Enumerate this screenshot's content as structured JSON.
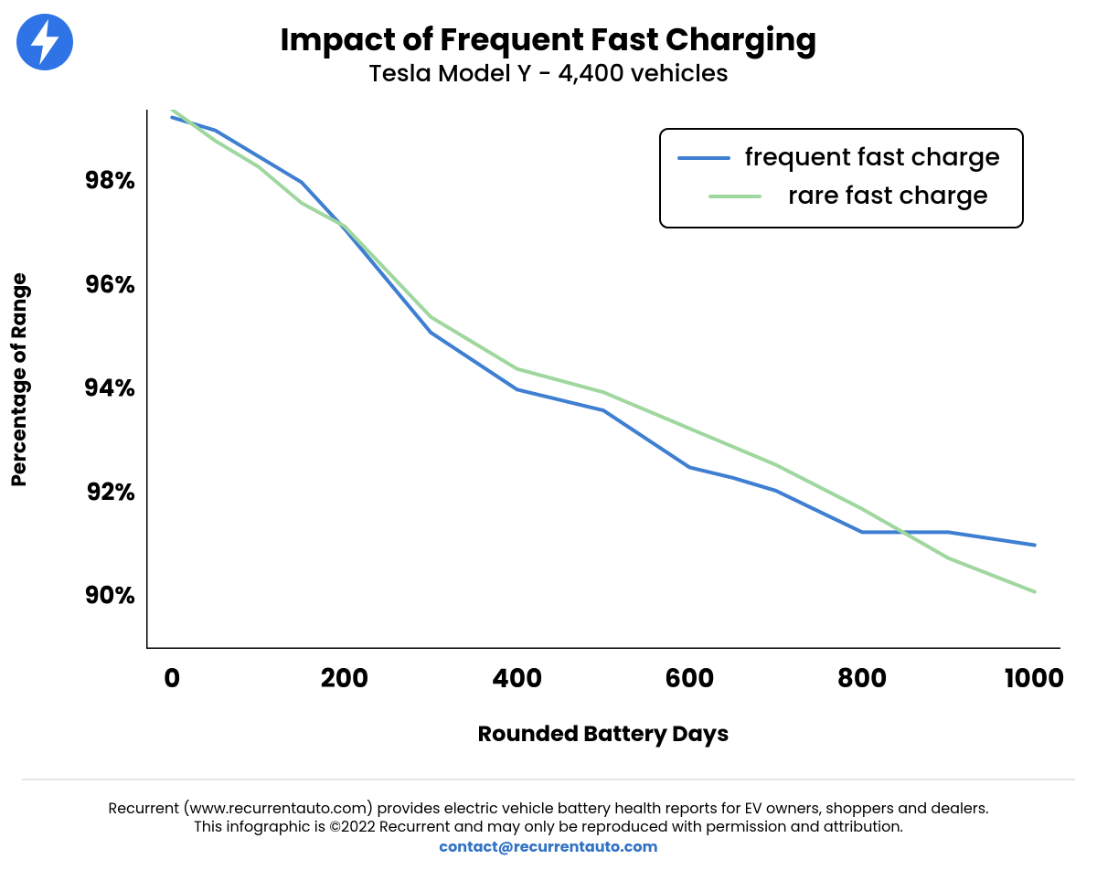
{
  "logo": {
    "bg_color": "#2f74e6",
    "bolt_color": "#ffffff"
  },
  "header": {
    "title": "Impact of Frequent Fast Charging",
    "subtitle": "Tesla Model Y - 4,400 vehicles",
    "title_fontsize": 34,
    "subtitle_fontsize": 26,
    "title_weight": 700,
    "subtitle_weight": 500
  },
  "chart": {
    "type": "line",
    "background_color": "#ffffff",
    "axis_color": "#000000",
    "axis_width": 3,
    "line_width": 4,
    "xlabel": "Rounded Battery Days",
    "ylabel": "Percentage of Range",
    "label_fontsize": 22,
    "tick_fontsize": 27,
    "tick_weight": 700,
    "xlim": [
      -30,
      1030
    ],
    "ylim": [
      89,
      99.4
    ],
    "xticks": [
      0,
      200,
      400,
      600,
      800,
      1000
    ],
    "yticks": [
      90,
      92,
      94,
      96,
      98
    ],
    "ytick_suffix": "%",
    "grid": false,
    "series": [
      {
        "name": "frequent fast charge",
        "color": "#3e7fd1",
        "x": [
          0,
          50,
          100,
          150,
          200,
          300,
          400,
          450,
          500,
          600,
          650,
          700,
          800,
          900,
          1000
        ],
        "y": [
          99.25,
          99.0,
          98.5,
          98.0,
          97.1,
          95.1,
          94.0,
          93.8,
          93.6,
          92.5,
          92.3,
          92.05,
          91.25,
          91.25,
          91.0
        ]
      },
      {
        "name": "rare fast charge",
        "color": "#9fd79f",
        "x": [
          0,
          50,
          100,
          150,
          200,
          300,
          400,
          500,
          600,
          700,
          800,
          900,
          1000
        ],
        "y": [
          99.4,
          98.8,
          98.3,
          97.6,
          97.15,
          95.4,
          94.4,
          93.95,
          93.25,
          92.55,
          91.7,
          90.75,
          90.1
        ]
      }
    ],
    "legend": {
      "position": "upper-right",
      "border_color": "#000000",
      "border_radius": 10,
      "fontsize": 27,
      "items": [
        {
          "label": "frequent fast charge",
          "color": "#3e7fd1"
        },
        {
          "label": "rare fast charge",
          "color": "#9fd79f"
        }
      ]
    }
  },
  "footer": {
    "line1": "Recurrent (www.recurrentauto.com) provides electric vehicle battery health reports for EV owners, shoppers and dealers.",
    "line2": "This infographic is ©2022 Recurrent and may only be reproduced with permission and attribution.",
    "contact": "contact@recurrentauto.com",
    "contact_color": "#3273c4",
    "rule_color": "#e5e5e5"
  }
}
